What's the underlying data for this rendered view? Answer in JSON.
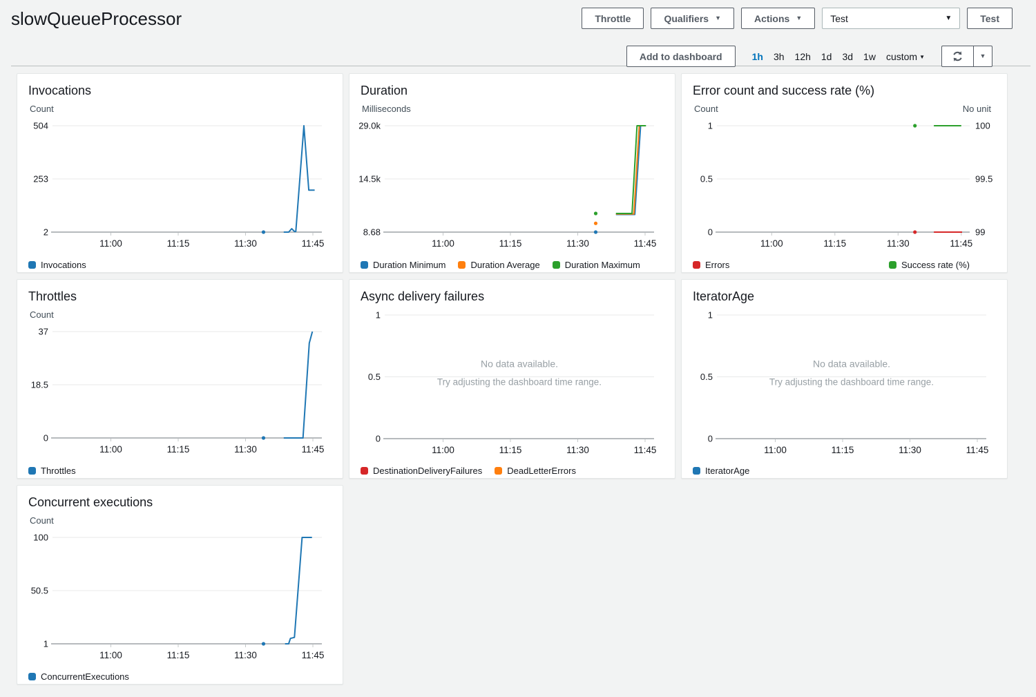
{
  "header": {
    "title": "slowQueueProcessor",
    "buttons": {
      "throttle": "Throttle",
      "qualifiers": "Qualifiers",
      "actions": "Actions",
      "test": "Test"
    },
    "test_select": {
      "value": "Test"
    }
  },
  "toolbar": {
    "add_to_dashboard": "Add to dashboard",
    "time_ranges": [
      {
        "label": "1h",
        "active": true
      },
      {
        "label": "3h",
        "active": false
      },
      {
        "label": "12h",
        "active": false
      },
      {
        "label": "1d",
        "active": false
      },
      {
        "label": "3d",
        "active": false
      },
      {
        "label": "1w",
        "active": false
      },
      {
        "label": "custom",
        "active": false,
        "caret": true
      }
    ]
  },
  "colors": {
    "page_bg": "#f2f3f3",
    "link_active": "#0073bb",
    "button_border": "#545b64",
    "chart_blue": "#1f77b4",
    "chart_orange": "#ff7f0e",
    "chart_green": "#2ca02c",
    "chart_red": "#d62728",
    "gridline": "#e8eaea",
    "axis_line": "#b6babd"
  },
  "chart_data": [
    {
      "type": "line",
      "title": "Invocations",
      "unit": "Count",
      "yticks": {
        "labels": [
          "504",
          "253",
          "2"
        ],
        "max": 504,
        "min": 2
      },
      "xticks": [
        "11:00",
        "11:15",
        "11:30",
        "11:45"
      ],
      "x_domain_minutes_after_11": [
        -13,
        47
      ],
      "series": [
        {
          "name": "Invocations",
          "color": "#1f77b4",
          "axis": "left",
          "dots": [
            [
              34,
              2
            ]
          ],
          "line": [
            [
              38.5,
              2
            ],
            [
              39.6,
              2
            ],
            [
              40.3,
              18
            ],
            [
              40.9,
              5
            ],
            [
              41.2,
              5
            ],
            [
              43,
              504
            ],
            [
              44.1,
              200
            ],
            [
              45.4,
              200
            ]
          ]
        }
      ]
    },
    {
      "type": "line",
      "title": "Duration",
      "unit": "Milliseconds",
      "yticks": {
        "labels": [
          "29.0k",
          "14.5k",
          "8.68"
        ],
        "max": 29000,
        "min": 8.68
      },
      "xticks": [
        "11:00",
        "11:15",
        "11:30",
        "11:45"
      ],
      "x_domain_minutes_after_11": [
        -13,
        47
      ],
      "series": [
        {
          "name": "Duration Minimum",
          "color": "#1f77b4",
          "axis": "left",
          "dots": [
            [
              34,
              8.68
            ]
          ],
          "line": [
            [
              38.5,
              4800
            ],
            [
              42.7,
              4800
            ],
            [
              44.0,
              29000
            ],
            [
              44.6,
              29000
            ]
          ]
        },
        {
          "name": "Duration Average",
          "color": "#ff7f0e",
          "axis": "left",
          "dots": [
            [
              34,
              2400
            ]
          ],
          "line": [
            [
              38.5,
              4950
            ],
            [
              42.5,
              4950
            ],
            [
              43.7,
              29000
            ],
            [
              45.1,
              29000
            ]
          ]
        },
        {
          "name": "Duration Maximum",
          "color": "#2ca02c",
          "axis": "left",
          "dots": [
            [
              34,
              5100
            ]
          ],
          "line": [
            [
              38.5,
              5100
            ],
            [
              42.1,
              5100
            ],
            [
              43.2,
              29000
            ],
            [
              45.2,
              29000
            ]
          ]
        }
      ]
    },
    {
      "type": "line",
      "title": "Error count and success rate (%)",
      "unit": "Count",
      "right_unit": "No unit",
      "yticks": {
        "labels": [
          "1",
          "0.5",
          "0"
        ],
        "max": 1,
        "min": 0
      },
      "right_yticks": {
        "labels": [
          "100",
          "99.5",
          "99"
        ],
        "max": 100,
        "min": 99
      },
      "xticks": [
        "11:00",
        "11:15",
        "11:30",
        "11:45"
      ],
      "x_domain_minutes_after_11": [
        -13,
        47
      ],
      "legend_layout": "spread",
      "series": [
        {
          "name": "Errors",
          "color": "#d62728",
          "axis": "left",
          "dots": [
            [
              34,
              0
            ]
          ],
          "line": [
            [
              38.5,
              0
            ],
            [
              45.2,
              0
            ]
          ]
        },
        {
          "name": "Success rate (%)",
          "color": "#2ca02c",
          "axis": "right",
          "dots": [
            [
              34,
              100
            ]
          ],
          "line": [
            [
              38.5,
              100
            ],
            [
              45,
              100
            ]
          ]
        }
      ]
    },
    {
      "type": "line",
      "title": "Throttles",
      "unit": "Count",
      "yticks": {
        "labels": [
          "37",
          "18.5",
          "0"
        ],
        "max": 37,
        "min": 0
      },
      "xticks": [
        "11:00",
        "11:15",
        "11:30",
        "11:45"
      ],
      "x_domain_minutes_after_11": [
        -13,
        47
      ],
      "series": [
        {
          "name": "Throttles",
          "color": "#1f77b4",
          "axis": "left",
          "dots": [
            [
              34,
              0
            ]
          ],
          "line": [
            [
              38.5,
              0
            ],
            [
              42.8,
              0
            ],
            [
              44.2,
              33
            ],
            [
              44.9,
              37
            ]
          ]
        }
      ]
    },
    {
      "type": "line",
      "title": "Async delivery failures",
      "unit": null,
      "yticks": {
        "labels": [
          "1",
          "0.5",
          "0"
        ],
        "max": 1,
        "min": 0
      },
      "xticks": [
        "11:00",
        "11:15",
        "11:30",
        "11:45"
      ],
      "x_domain_minutes_after_11": [
        -13,
        47
      ],
      "no_data": [
        "No data available.",
        "Try adjusting the dashboard time range."
      ],
      "series": [
        {
          "name": "DestinationDeliveryFailures",
          "color": "#d62728",
          "axis": "left",
          "dots": [],
          "line": []
        },
        {
          "name": "DeadLetterErrors",
          "color": "#ff7f0e",
          "axis": "left",
          "dots": [],
          "line": []
        }
      ]
    },
    {
      "type": "line",
      "title": "IteratorAge",
      "unit": null,
      "yticks": {
        "labels": [
          "1",
          "0.5",
          "0"
        ],
        "max": 1,
        "min": 0
      },
      "xticks": [
        "11:00",
        "11:15",
        "11:30",
        "11:45"
      ],
      "x_domain_minutes_after_11": [
        -13,
        47
      ],
      "no_data": [
        "No data available.",
        "Try adjusting the dashboard time range."
      ],
      "series": [
        {
          "name": "IteratorAge",
          "color": "#1f77b4",
          "axis": "left",
          "dots": [],
          "line": []
        }
      ]
    },
    {
      "type": "line",
      "title": "Concurrent executions",
      "unit": "Count",
      "yticks": {
        "labels": [
          "100",
          "50.5",
          "1"
        ],
        "max": 100,
        "min": 1
      },
      "xticks": [
        "11:00",
        "11:15",
        "11:30",
        "11:45"
      ],
      "x_domain_minutes_after_11": [
        -13,
        47
      ],
      "series": [
        {
          "name": "ConcurrentExecutions",
          "color": "#1f77b4",
          "axis": "left",
          "dots": [
            [
              34,
              1
            ]
          ],
          "line": [
            [
              38.8,
              1
            ],
            [
              39.6,
              1
            ],
            [
              40,
              6
            ],
            [
              40.9,
              7
            ],
            [
              42.6,
              100
            ],
            [
              44.8,
              100
            ]
          ]
        }
      ]
    }
  ]
}
